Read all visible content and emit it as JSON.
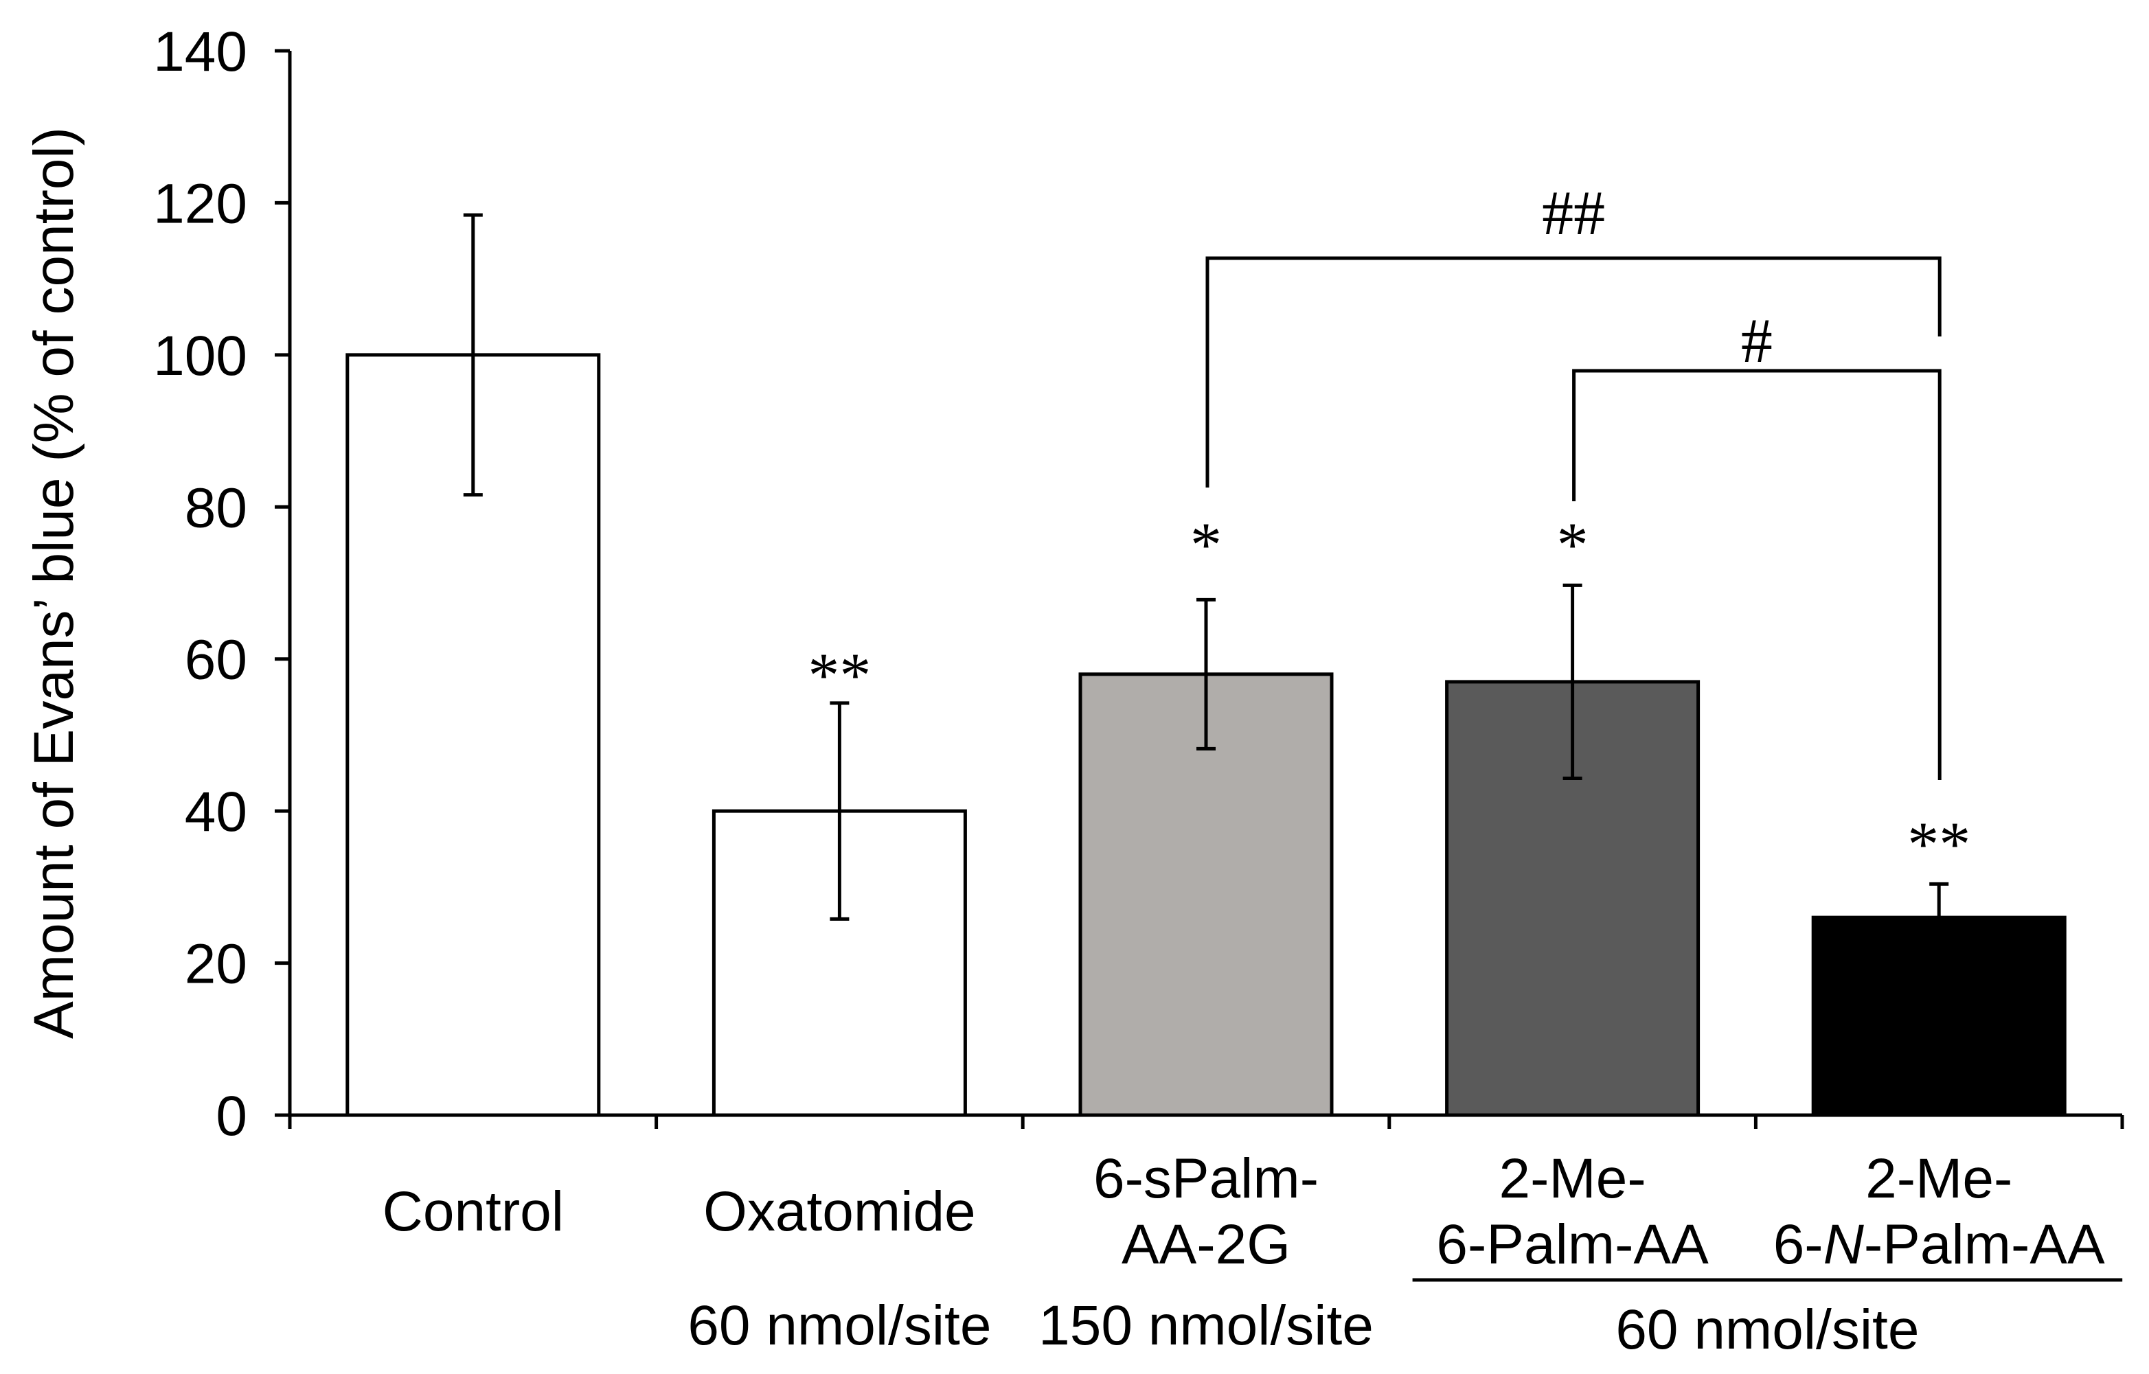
{
  "chart_data": {
    "type": "bar",
    "title": "",
    "xlabel": "",
    "ylabel": "Amount of Evans’ blue (% of control)",
    "ylim": [
      0,
      140
    ],
    "yticks": [
      0,
      20,
      40,
      60,
      80,
      100,
      120,
      140
    ],
    "grid": false,
    "categories": [
      {
        "lines": [
          [
            {
              "text": "Control",
              "italic": false
            }
          ]
        ]
      },
      {
        "lines": [
          [
            {
              "text": "Oxatomide",
              "italic": false
            }
          ]
        ]
      },
      {
        "lines": [
          [
            {
              "text": "6-sPalm-",
              "italic": false
            }
          ],
          [
            {
              "text": "AA-2G",
              "italic": false
            }
          ]
        ]
      },
      {
        "lines": [
          [
            {
              "text": "2-Me-",
              "italic": false
            }
          ],
          [
            {
              "text": "6-Palm-AA",
              "italic": false
            }
          ]
        ]
      },
      {
        "lines": [
          [
            {
              "text": "2-Me-",
              "italic": false
            }
          ],
          [
            {
              "text": "6-",
              "italic": false
            },
            {
              "text": "N",
              "italic": true
            },
            {
              "text": "-Palm-AA",
              "italic": false
            }
          ]
        ]
      }
    ],
    "values": [
      100,
      40,
      58,
      57,
      26
    ],
    "error_upper": [
      118.4,
      54.2,
      67.8,
      69.7,
      30.4
    ],
    "error_lower": [
      81.6,
      25.8,
      48.2,
      44.3,
      21.6
    ],
    "colors": [
      "#ffffff",
      "#ffffff",
      "#b0adaa",
      "#5a5a5a",
      "#000000"
    ],
    "significance": [
      "",
      "**",
      "*",
      "*",
      "**"
    ],
    "comparisons": [
      {
        "from": 2,
        "to": 4,
        "label": "##"
      },
      {
        "from": 3,
        "to": 4,
        "label": "#"
      }
    ],
    "doses": [
      {
        "label": "60 nmol/site",
        "categories": [
          1
        ]
      },
      {
        "label": "150 nmol/site",
        "categories": [
          2
        ]
      },
      {
        "label": "60 nmol/site",
        "categories": [
          3,
          4
        ]
      }
    ]
  }
}
